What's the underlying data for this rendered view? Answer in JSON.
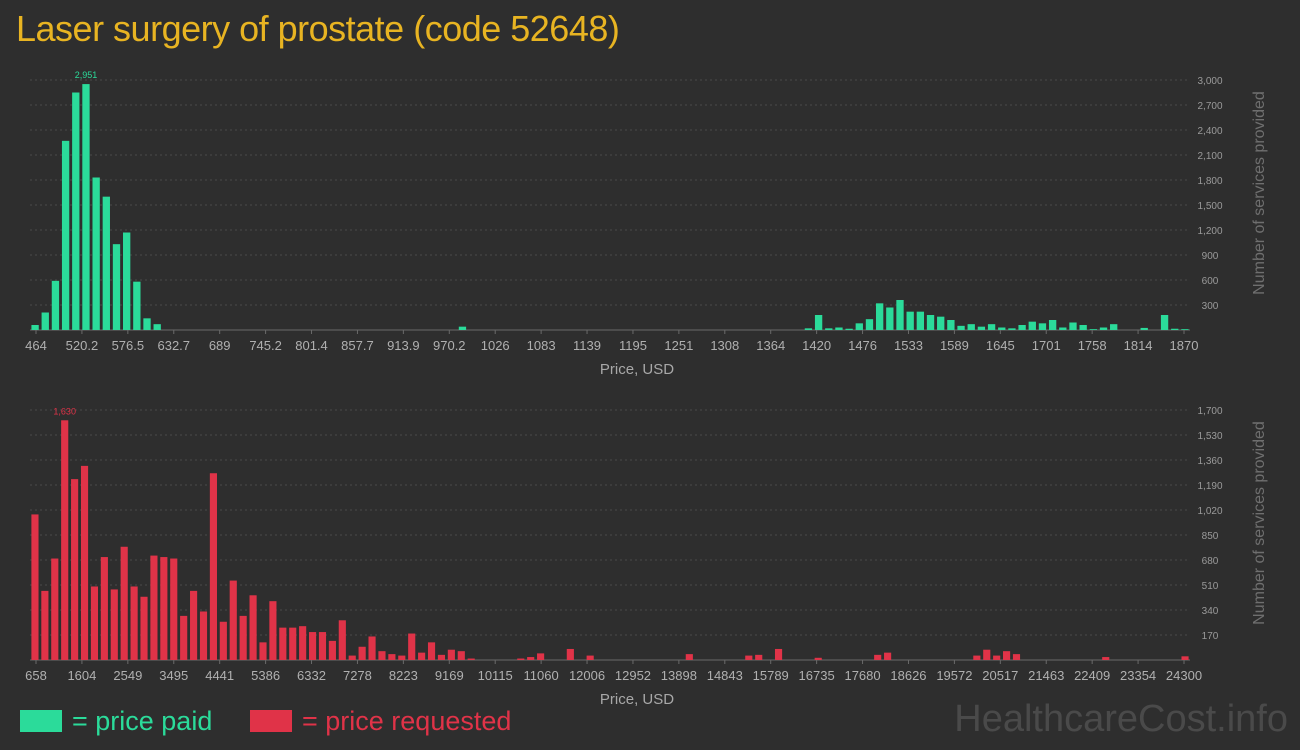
{
  "title": "Laser surgery of prostate (code 52648)",
  "watermark": "HealthcareCost.info",
  "legend": {
    "paid_label": "= price paid",
    "requested_label": "= price requested",
    "paid_color": "#2bdb9a",
    "requested_color": "#e03348"
  },
  "chart_data": [
    {
      "type": "bar",
      "name": "price paid",
      "color": "#2bdb9a",
      "xlabel": "Price, USD",
      "ylabel": "Number of services provided",
      "ylim": [
        0,
        3000
      ],
      "x_ticks": [
        "464",
        "520.2",
        "576.5",
        "632.7",
        "689",
        "745.2",
        "801.4",
        "857.7",
        "913.9",
        "970.2",
        "1026",
        "1083",
        "1139",
        "1195",
        "1251",
        "1308",
        "1364",
        "1420",
        "1476",
        "1533",
        "1589",
        "1645",
        "1701",
        "1758",
        "1814",
        "1870"
      ],
      "y_ticks": [
        "300",
        "600",
        "900",
        "1,200",
        "1,500",
        "1,800",
        "2,100",
        "2,400",
        "2,700",
        "3,000"
      ],
      "max_label": "2,951",
      "max_index": 5,
      "values": [
        60,
        210,
        590,
        2270,
        2850,
        2951,
        1830,
        1600,
        1030,
        1170,
        580,
        140,
        70,
        0,
        0,
        0,
        0,
        0,
        0,
        0,
        0,
        0,
        0,
        0,
        0,
        0,
        0,
        0,
        0,
        0,
        0,
        0,
        0,
        0,
        0,
        0,
        0,
        0,
        0,
        0,
        0,
        0,
        40,
        0,
        0,
        0,
        0,
        0,
        0,
        0,
        0,
        0,
        0,
        0,
        0,
        0,
        0,
        0,
        0,
        0,
        0,
        0,
        0,
        0,
        0,
        0,
        0,
        0,
        0,
        0,
        0,
        0,
        0,
        0,
        0,
        0,
        20,
        180,
        20,
        30,
        15,
        80,
        130,
        320,
        270,
        360,
        220,
        220,
        180,
        160,
        120,
        50,
        70,
        40,
        70,
        30,
        20,
        60,
        100,
        80,
        120,
        30,
        90,
        60,
        10,
        30,
        70,
        0,
        0,
        25,
        0,
        180,
        15,
        10
      ]
    },
    {
      "type": "bar",
      "name": "price requested",
      "color": "#e03348",
      "xlabel": "Price, USD",
      "ylabel": "Number of services provided",
      "ylim": [
        0,
        1700
      ],
      "x_ticks": [
        "658",
        "1604",
        "2549",
        "3495",
        "4441",
        "5386",
        "6332",
        "7278",
        "8223",
        "9169",
        "10115",
        "11060",
        "12006",
        "12952",
        "13898",
        "14843",
        "15789",
        "16735",
        "17680",
        "18626",
        "19572",
        "20517",
        "21463",
        "22409",
        "23354",
        "24300"
      ],
      "y_ticks": [
        "170",
        "340",
        "510",
        "680",
        "850",
        "1,020",
        "1,190",
        "1,360",
        "1,530",
        "1,700"
      ],
      "max_label": "1,630",
      "max_index": 3,
      "values": [
        990,
        470,
        690,
        1630,
        1230,
        1320,
        500,
        700,
        480,
        770,
        500,
        430,
        710,
        700,
        690,
        300,
        470,
        330,
        1270,
        260,
        540,
        300,
        440,
        120,
        400,
        220,
        220,
        230,
        190,
        190,
        130,
        270,
        30,
        90,
        160,
        60,
        40,
        30,
        180,
        50,
        120,
        35,
        70,
        60,
        10,
        0,
        0,
        0,
        0,
        10,
        20,
        45,
        0,
        0,
        75,
        0,
        30,
        0,
        0,
        0,
        0,
        0,
        0,
        0,
        0,
        0,
        40,
        0,
        0,
        0,
        0,
        0,
        30,
        35,
        0,
        75,
        0,
        0,
        0,
        15,
        0,
        0,
        0,
        0,
        0,
        35,
        50,
        0,
        0,
        0,
        0,
        0,
        0,
        0,
        0,
        30,
        70,
        30,
        60,
        40,
        0,
        0,
        0,
        0,
        0,
        0,
        0,
        0,
        20,
        0,
        0,
        0,
        0,
        0,
        0,
        0,
        25
      ]
    }
  ]
}
